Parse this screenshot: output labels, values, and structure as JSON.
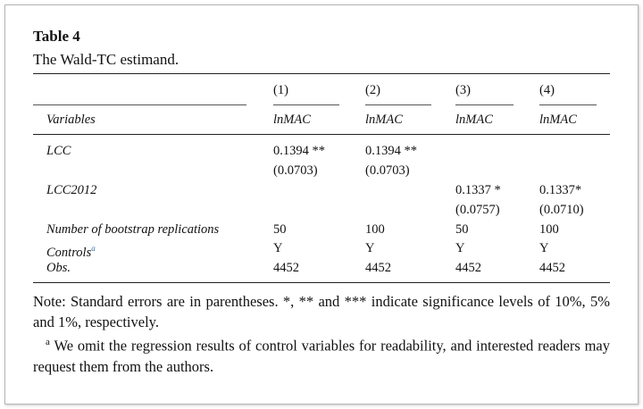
{
  "table": {
    "title": "Table 4",
    "caption": "The Wald-TC estimand.",
    "column_numbers": [
      "(1)",
      "(2)",
      "(3)",
      "(4)"
    ],
    "header": [
      "Variables",
      "lnMAC",
      "lnMAC",
      "lnMAC",
      "lnMAC"
    ],
    "rows": [
      {
        "label": "LCC",
        "cells": [
          [
            "0.1394 **",
            "(0.0703)"
          ],
          [
            "0.1394 **",
            "(0.0703)"
          ],
          null,
          null
        ]
      },
      {
        "label": "LCC2012",
        "cells": [
          null,
          null,
          [
            "0.1337 *",
            "(0.0757)"
          ],
          [
            "0.1337*",
            "(0.0710)"
          ]
        ]
      },
      {
        "label": "Number of bootstrap replications",
        "cells": [
          [
            "50"
          ],
          [
            "100"
          ],
          [
            "50"
          ],
          [
            "100"
          ]
        ]
      },
      {
        "label": "Controls",
        "note_mark": "a",
        "cells": [
          [
            "Y"
          ],
          [
            "Y"
          ],
          [
            "Y"
          ],
          [
            "Y"
          ]
        ]
      },
      {
        "label": "Obs.",
        "cells": [
          [
            "4452"
          ],
          [
            "4452"
          ],
          [
            "4452"
          ],
          [
            "4452"
          ]
        ]
      }
    ],
    "note": "Note: Standard errors are in parentheses. *, ** and *** indicate significance levels of 10%, 5% and 1%, respectively.",
    "footnote": {
      "mark": "a",
      "text": "We omit the regression results of control variables for readability, and interested readers may request them from the authors."
    }
  }
}
